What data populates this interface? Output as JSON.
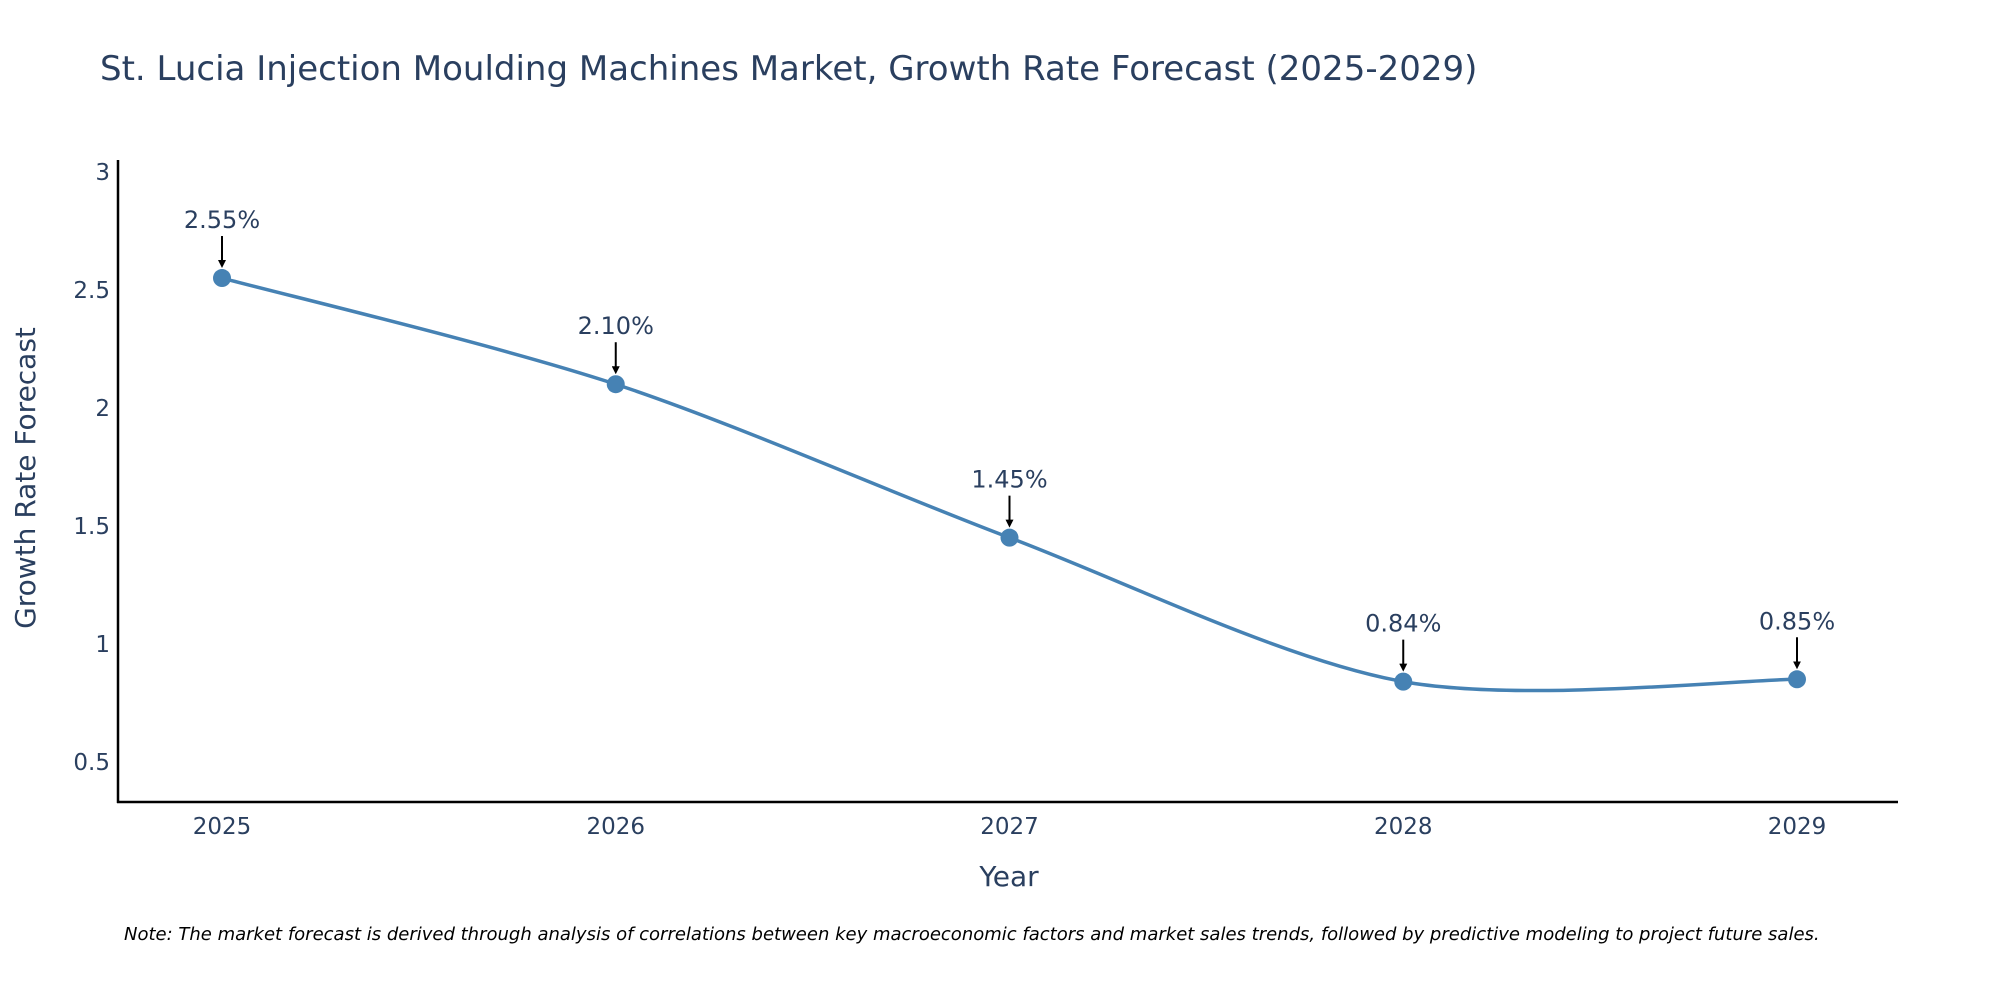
{
  "chart_data": {
    "type": "line",
    "title": "St. Lucia Injection Moulding Machines Market, Growth Rate Forecast (2025-2029)",
    "xlabel": "Year",
    "ylabel": "Growth Rate Forecast",
    "categories": [
      "2025",
      "2026",
      "2027",
      "2028",
      "2029"
    ],
    "values": [
      2.55,
      2.1,
      1.45,
      0.84,
      0.85
    ],
    "annotations": [
      "2.55%",
      "2.10%",
      "1.45%",
      "0.84%",
      "0.85%"
    ],
    "y_ticks": [
      0.5,
      1,
      1.5,
      2,
      2.5,
      3
    ],
    "y_tick_labels": [
      "0.5",
      "1",
      "1.5",
      "2",
      "2.5",
      "3"
    ],
    "ylim": [
      0.33,
      3.05
    ],
    "line_shape": "spline",
    "grid": false,
    "note": "Note: The market forecast is derived through analysis of correlations between key macroeconomic factors and market sales trends, followed by predictive modeling to project future sales.",
    "colors": {
      "line": "#4682b4",
      "marker": "#4682b4",
      "axis": "#000000",
      "text": "#2a3f5f",
      "arrow": "#000000"
    }
  }
}
